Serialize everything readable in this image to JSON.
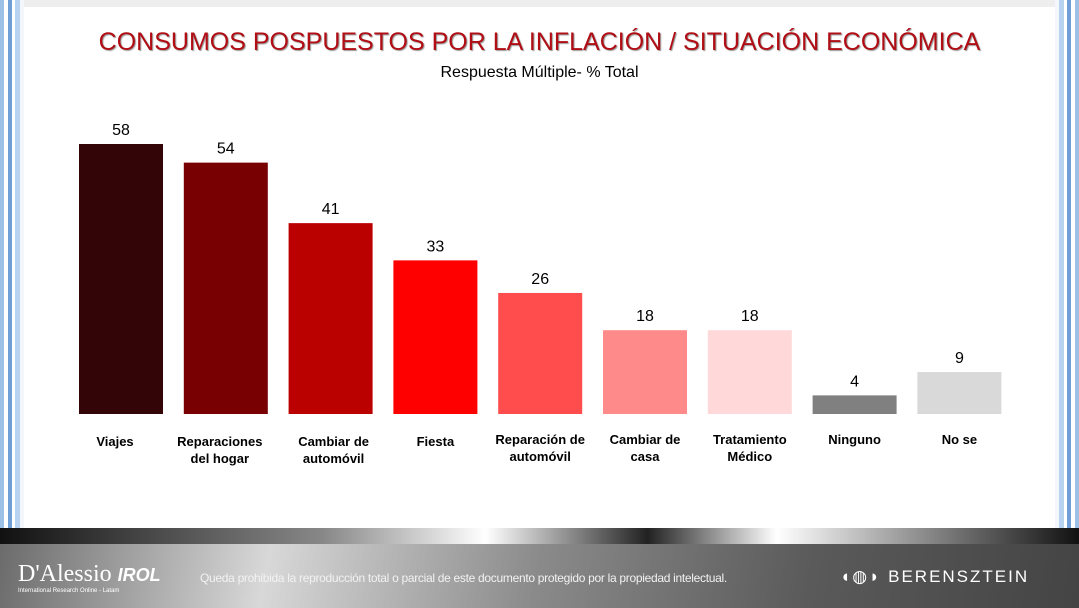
{
  "chart_data": {
    "type": "bar",
    "title": "CONSUMOS POSPUESTOS POR LA INFLACIÓN / SITUACIÓN ECONÓMICA",
    "subtitle": "Respuesta Múltiple-  % Total",
    "categories": [
      [
        "Viajes"
      ],
      [
        "Reparaciones",
        "del hogar"
      ],
      [
        "Cambiar de",
        "automóvil"
      ],
      [
        "Fiesta"
      ],
      [
        "Reparación de",
        "automóvil"
      ],
      [
        "Cambiar de",
        "casa"
      ],
      [
        "Tratamiento",
        "Médico"
      ],
      [
        "Ninguno"
      ],
      [
        "No se"
      ]
    ],
    "values": [
      58,
      54,
      41,
      33,
      26,
      18,
      18,
      4,
      9
    ],
    "colors": [
      "#330506",
      "#780002",
      "#bb0000",
      "#fe0000",
      "#ff4d4d",
      "#ff8a8a",
      "#ffd9d9",
      "#808080",
      "#d9d9d9"
    ],
    "ylim": [
      0,
      60
    ],
    "grid": false,
    "legend": "none"
  },
  "footer": {
    "logo_left": "D'Alessio",
    "logo_left_b": "IROL",
    "logo_left_tag": "International Research Online - Latam",
    "disclaimer": "Queda prohibida la reproducción total o parcial de este documento protegido por la propiedad intelectual.",
    "logo_right": "BERENSZTEIN"
  }
}
